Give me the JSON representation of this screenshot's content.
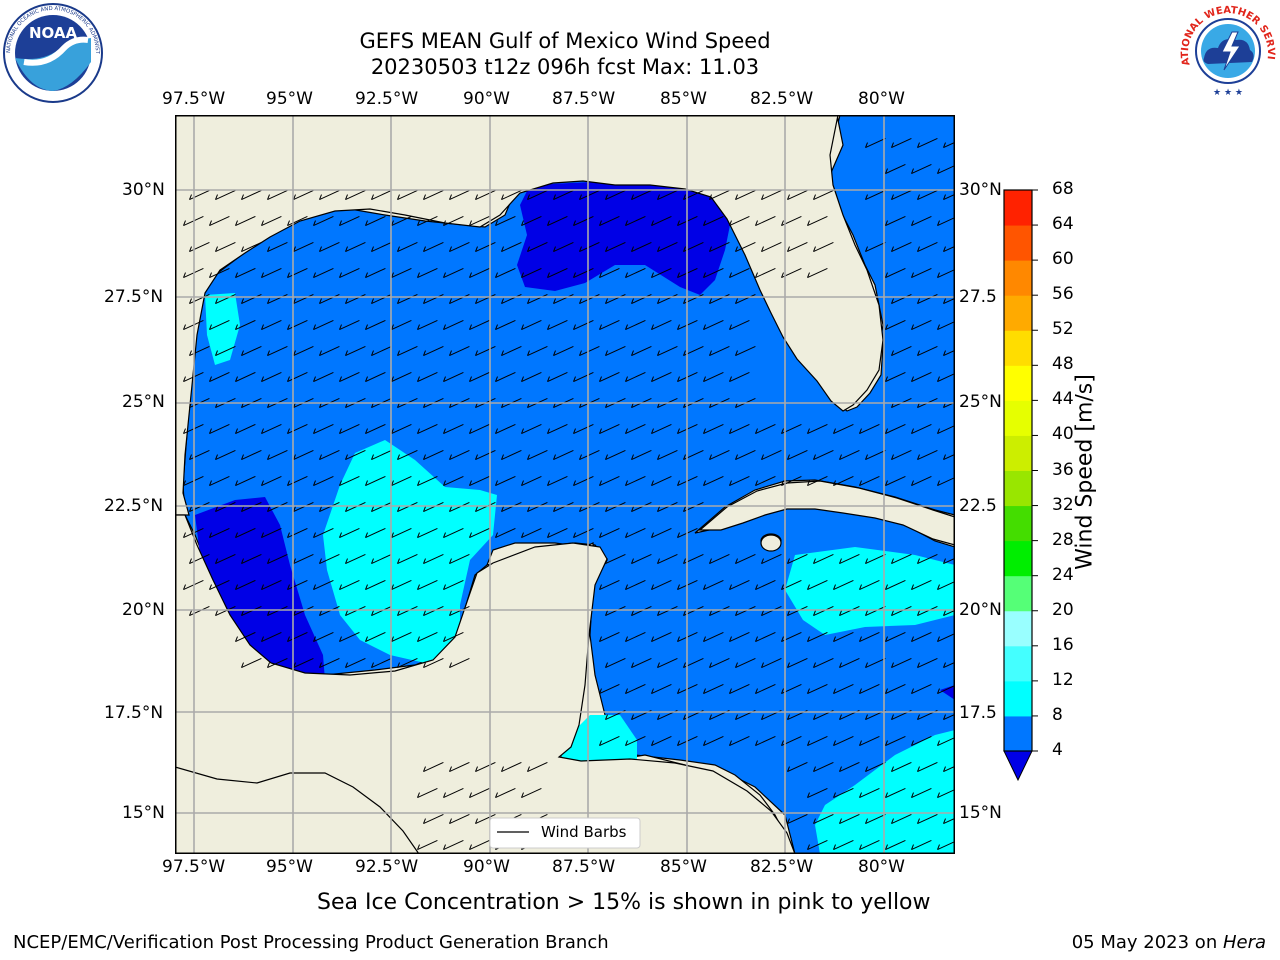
{
  "title": {
    "line1": "GEFS MEAN Gulf of Mexico Wind Speed",
    "line2": "20230503 t12z 096h fcst   Max: 11.03"
  },
  "logos": {
    "noaa": {
      "text": "NOAA",
      "ring_text": "NATIONAL OCEANIC AND ATMOSPHERIC ADMINISTRATION · U.S. DEPARTMENT OF COMMERCE"
    },
    "nws": {
      "ring_text": "NATIONAL WEATHER SERVICE"
    }
  },
  "map": {
    "lon_labels": [
      "97.5°W",
      "95°W",
      "92.5°W",
      "90°W",
      "87.5°W",
      "85°W",
      "82.5°W",
      "80°W"
    ],
    "lat_labels": [
      "30°N",
      "27.5°N",
      "25°N",
      "22.5°N",
      "20°N",
      "17.5°N",
      "15°N"
    ],
    "lat_labels_right": [
      "30°N",
      "27.5",
      "25°N",
      "22.5",
      "20°N",
      "17.5",
      "15°N"
    ],
    "legend_label": "Wind Barbs",
    "colors": {
      "land": "#efeedd",
      "level_0": "#0000e6",
      "level_4": "#0077ff",
      "level_8": "#00ffff"
    }
  },
  "colorbar": {
    "label": "Wind Speed [m/s]",
    "ticks": [
      "4",
      "8",
      "12",
      "16",
      "20",
      "24",
      "28",
      "32",
      "36",
      "40",
      "44",
      "48",
      "52",
      "56",
      "60",
      "64",
      "68"
    ],
    "colors": [
      "#0077ff",
      "#00ffff",
      "#44ffff",
      "#99ffff",
      "#55ff77",
      "#00ee00",
      "#44dd00",
      "#99e600",
      "#ccee00",
      "#e6ff00",
      "#ffff00",
      "#ffdd00",
      "#ffaa00",
      "#ff8800",
      "#ff5500",
      "#ff2200"
    ],
    "under_color": "#0000e6"
  },
  "subfooter": "Sea Ice Concentration > 15% is shown in pink to yellow",
  "footer": {
    "left": "NCEP/EMC/Verification Post Processing Product Generation Branch",
    "right_prefix": "05 May 2023 on ",
    "right_machine": "Hera"
  }
}
